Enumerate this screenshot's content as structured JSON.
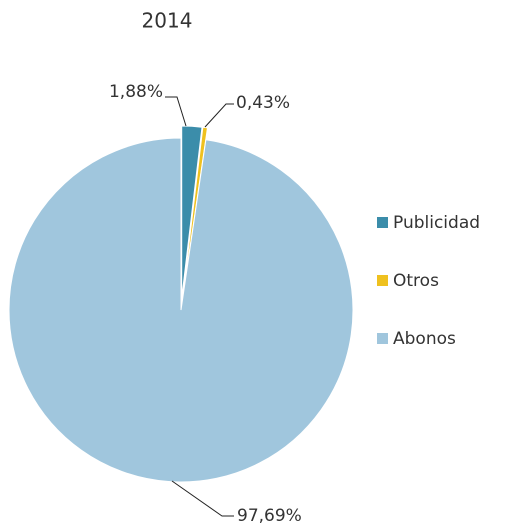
{
  "chart_data": {
    "type": "pie",
    "title": "2014",
    "categories": [
      "Publicidad",
      "Otros",
      "Abonos"
    ],
    "values": [
      1.88,
      0.43,
      97.69
    ],
    "value_labels": [
      "1,88%",
      "0,43%",
      "97,69%"
    ],
    "colors": [
      "#3b8daa",
      "#efc11f",
      "#a0c6dd"
    ],
    "legend": "right"
  }
}
